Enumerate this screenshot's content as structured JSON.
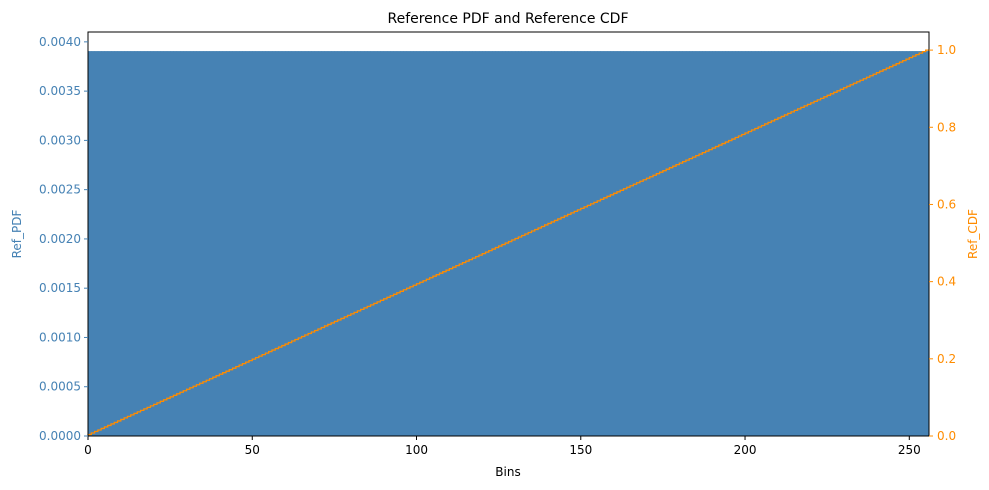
{
  "chart_data": {
    "type": "bar",
    "title": "Reference PDF and Reference CDF",
    "xlabel": "Bins",
    "ylabel_left": "Ref_PDF",
    "ylabel_right": "Ref_CDF",
    "xlim": [
      0,
      256
    ],
    "ylim_left": [
      0,
      0.0041
    ],
    "ylim_right": [
      0,
      1.0469
    ],
    "x_ticks": [
      0,
      50,
      100,
      150,
      200,
      250
    ],
    "x_tick_labels": [
      "0",
      "50",
      "100",
      "150",
      "200",
      "250"
    ],
    "y_left_ticks": [
      0,
      0.0005,
      0.001,
      0.0015,
      0.002,
      0.0025,
      0.003,
      0.0035,
      0.004
    ],
    "y_left_tick_labels": [
      "0.0000",
      "0.0005",
      "0.0010",
      "0.0015",
      "0.0020",
      "0.0025",
      "0.0030",
      "0.0035",
      "0.0040"
    ],
    "y_right_ticks": [
      0,
      0.2,
      0.4,
      0.6,
      0.8,
      1.0
    ],
    "y_right_tick_labels": [
      "0.0",
      "0.2",
      "0.4",
      "0.6",
      "0.8",
      "1.0"
    ],
    "series": [
      {
        "kind": "bar",
        "axis": "left",
        "bins": 256,
        "value": 0.00390625,
        "color": "#4682b4"
      },
      {
        "kind": "step-line",
        "axis": "right",
        "bins": 256,
        "start": 0,
        "end": 1.0,
        "color": "#ff8c00"
      }
    ],
    "grid": false
  }
}
